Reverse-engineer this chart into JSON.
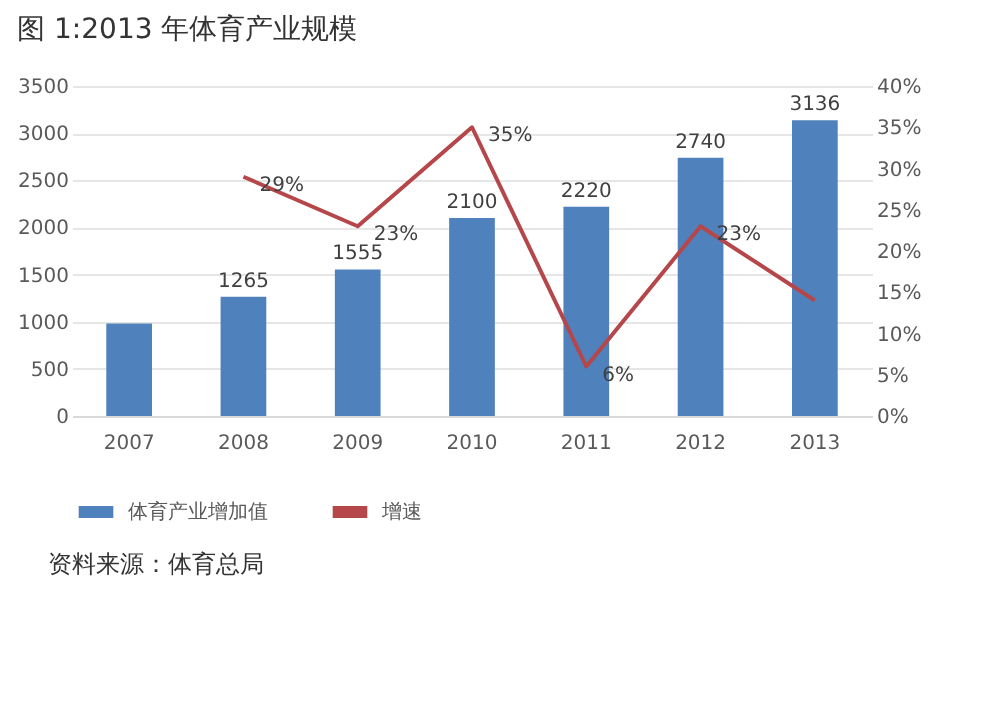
{
  "chart_data": {
    "type": "bar",
    "title": "图 1:2013 年体育产业规模",
    "categories": [
      "2007",
      "2008",
      "2009",
      "2010",
      "2011",
      "2012",
      "2013"
    ],
    "series": [
      {
        "name": "体育产业增加值",
        "color": "#4f81bd",
        "values": [
          980,
          1265,
          1555,
          2100,
          2220,
          2740,
          3136
        ],
        "value_labels": [
          null,
          "1265",
          "1555",
          "2100",
          "2220",
          "2740",
          "3136"
        ]
      },
      {
        "name": "增速",
        "type": "line",
        "axis": "y2",
        "color": "#b5474b",
        "values": [
          null,
          29,
          23,
          35,
          6,
          23,
          14
        ],
        "value_labels": [
          null,
          "29%",
          "23%",
          "35%",
          "6%",
          "23%",
          null
        ]
      }
    ],
    "ylim": [
      0,
      3500
    ],
    "yticks": [
      0,
      500,
      1000,
      1500,
      2000,
      2500,
      3000,
      3500
    ],
    "y2lim": [
      0,
      40
    ],
    "y2ticks": [
      {
        "value": 0,
        "label": "0%"
      },
      {
        "value": 5,
        "label": "5%"
      },
      {
        "value": 10,
        "label": "10%"
      },
      {
        "value": 15,
        "label": "15%"
      },
      {
        "value": 20,
        "label": "20%"
      },
      {
        "value": 25,
        "label": "25%"
      },
      {
        "value": 30,
        "label": "30%"
      },
      {
        "value": 35,
        "label": "35%"
      },
      {
        "value": 40,
        "label": "40%"
      }
    ],
    "grid": "y",
    "legend": "bottom",
    "marker": "none",
    "line_style": "solid",
    "annotations": [
      "资料来源：体育总局"
    ]
  }
}
